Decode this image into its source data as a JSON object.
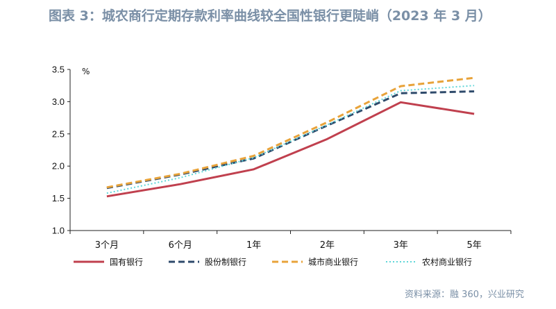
{
  "title": "图表 3：城农商行定期存款利率曲线较全国性银行更陡峭（2023 年 3 月）",
  "source": "资料来源：融 360，兴业研究",
  "chart_data": {
    "type": "line",
    "categories": [
      "3个月",
      "6个月",
      "1年",
      "2年",
      "3年",
      "5年"
    ],
    "ylim": [
      1.0,
      3.5
    ],
    "yticks": [
      "1.0",
      "1.5",
      "2.0",
      "2.5",
      "3.0",
      "3.5"
    ],
    "ylabel": "%",
    "grid": false,
    "legend_position": "bottom",
    "series": [
      {
        "name": "国有银行",
        "values": [
          1.53,
          1.72,
          1.95,
          2.42,
          2.99,
          2.81
        ],
        "color": "#c0404e",
        "dash": "solid"
      },
      {
        "name": "股份制银行",
        "values": [
          1.66,
          1.87,
          2.12,
          2.63,
          3.13,
          3.16
        ],
        "color": "#2e4a6b",
        "dash": "dashed"
      },
      {
        "name": "城市商业银行",
        "values": [
          1.67,
          1.88,
          2.16,
          2.68,
          3.24,
          3.37
        ],
        "color": "#e8a33a",
        "dash": "dashed"
      },
      {
        "name": "农村商业银行",
        "values": [
          1.58,
          1.82,
          2.13,
          2.64,
          3.17,
          3.25
        ],
        "color": "#5fd6d8",
        "dash": "dotted"
      }
    ]
  }
}
